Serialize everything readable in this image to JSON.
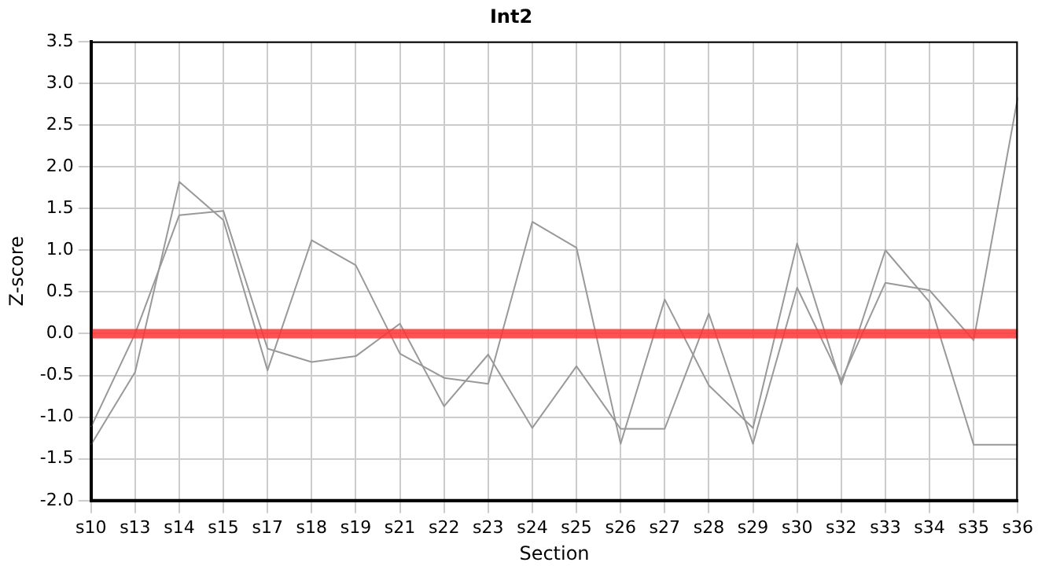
{
  "chart_data": {
    "type": "line",
    "title": "Int2",
    "xlabel": "Section",
    "ylabel": "Z-score",
    "categories": [
      "s10",
      "s13",
      "s14",
      "s15",
      "s17",
      "s18",
      "s19",
      "s21",
      "s22",
      "s23",
      "s24",
      "s25",
      "s26",
      "s27",
      "s28",
      "s29",
      "s30",
      "s32",
      "s33",
      "s34",
      "s35",
      "s36"
    ],
    "series": [
      {
        "color": "#999999",
        "values": [
          -1.33,
          -0.46,
          1.82,
          1.36,
          -0.44,
          1.12,
          0.82,
          -0.24,
          -0.53,
          -0.6,
          1.34,
          1.03,
          -1.32,
          0.41,
          -0.62,
          -1.13,
          1.08,
          -0.61,
          1.0,
          0.38,
          -1.33,
          -1.33
        ]
      },
      {
        "color": "#999999",
        "values": [
          -1.12,
          0.0,
          1.42,
          1.47,
          -0.18,
          -0.34,
          -0.27,
          0.12,
          -0.87,
          -0.25,
          -1.13,
          -0.39,
          -1.14,
          -1.14,
          0.24,
          -1.32,
          0.55,
          -0.56,
          0.61,
          0.52,
          -0.08,
          2.83
        ]
      }
    ],
    "ylim": [
      -2,
      3.5
    ],
    "yticks": [
      {
        "value": -2,
        "label": "-2.0"
      },
      -1.5,
      {
        "value": -1,
        "label": "-1.0"
      },
      -0.5,
      {
        "value": 0,
        "label": "0.0"
      },
      0.5,
      {
        "value": 1,
        "label": "1.0"
      },
      1.5,
      {
        "value": 2,
        "label": "2.0"
      },
      2.5,
      {
        "value": 3,
        "label": "3.0"
      },
      3.5
    ],
    "ref_lines": [
      {
        "axis": "y",
        "value": 0,
        "color": "#ff3333"
      }
    ],
    "grid": true,
    "legend": false,
    "marker": "none",
    "line_style": "solid"
  }
}
